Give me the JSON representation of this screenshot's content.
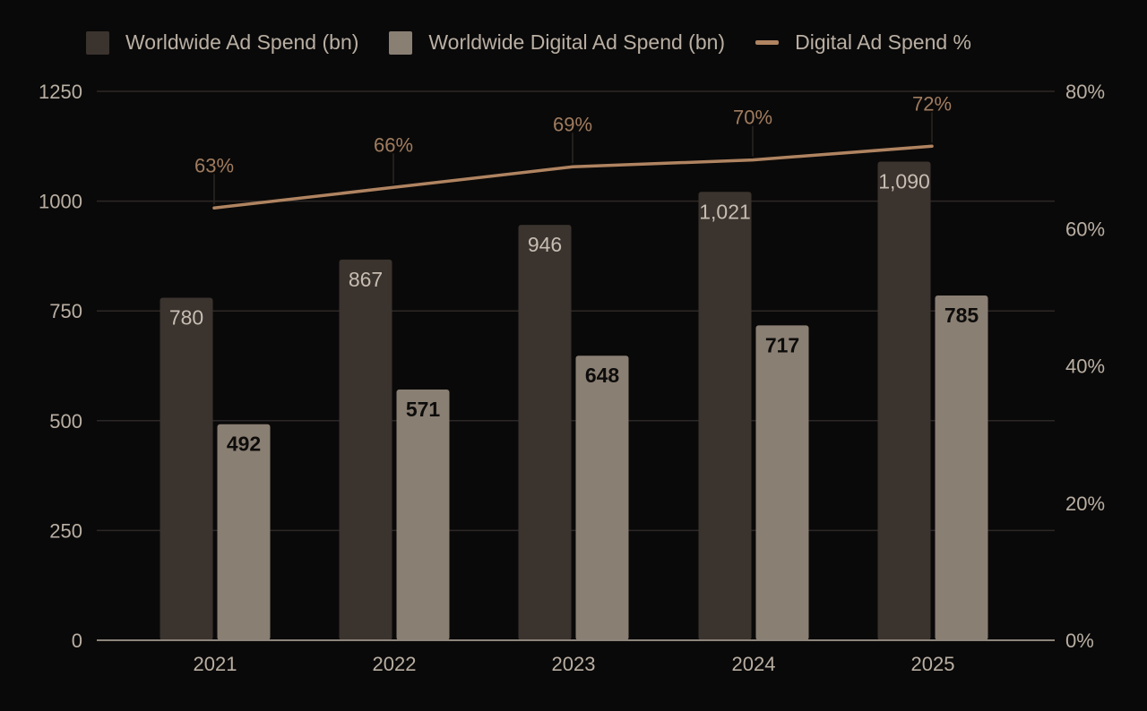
{
  "colors": {
    "background": "#0a0909",
    "grid": "#2c2826",
    "axis": "#8c847b",
    "text": "#b9afa3",
    "total_bar": "#3a332e",
    "digital_bar": "#8a7f73",
    "line": "#b08461"
  },
  "chart_data": {
    "type": "bar",
    "categories": [
      "2021",
      "2022",
      "2023",
      "2024",
      "2025"
    ],
    "series": [
      {
        "name": "Worldwide Ad Spend (bn)",
        "type": "bar",
        "axis": "left",
        "values": [
          780,
          867,
          946,
          1021,
          1090
        ],
        "labels": [
          "780",
          "867",
          "946",
          "1,021",
          "1,090"
        ]
      },
      {
        "name": "Worldwide Digital Ad Spend (bn)",
        "type": "bar",
        "axis": "left",
        "values": [
          492,
          571,
          648,
          717,
          785
        ],
        "labels": [
          "492",
          "571",
          "648",
          "717",
          "785"
        ]
      },
      {
        "name": "Digital Ad Spend %",
        "type": "line",
        "axis": "right",
        "values": [
          63,
          66,
          69,
          70,
          72
        ],
        "labels": [
          "63%",
          "66%",
          "69%",
          "70%",
          "72%"
        ]
      }
    ],
    "y_left": {
      "min": 0,
      "max": 1250,
      "ticks": [
        "0",
        "250",
        "500",
        "750",
        "1000",
        "1250"
      ]
    },
    "y_right": {
      "min": 0,
      "max": 80,
      "ticks": [
        "0%",
        "20%",
        "40%",
        "60%",
        "80%"
      ]
    },
    "grid": true,
    "legend_position": "top"
  }
}
